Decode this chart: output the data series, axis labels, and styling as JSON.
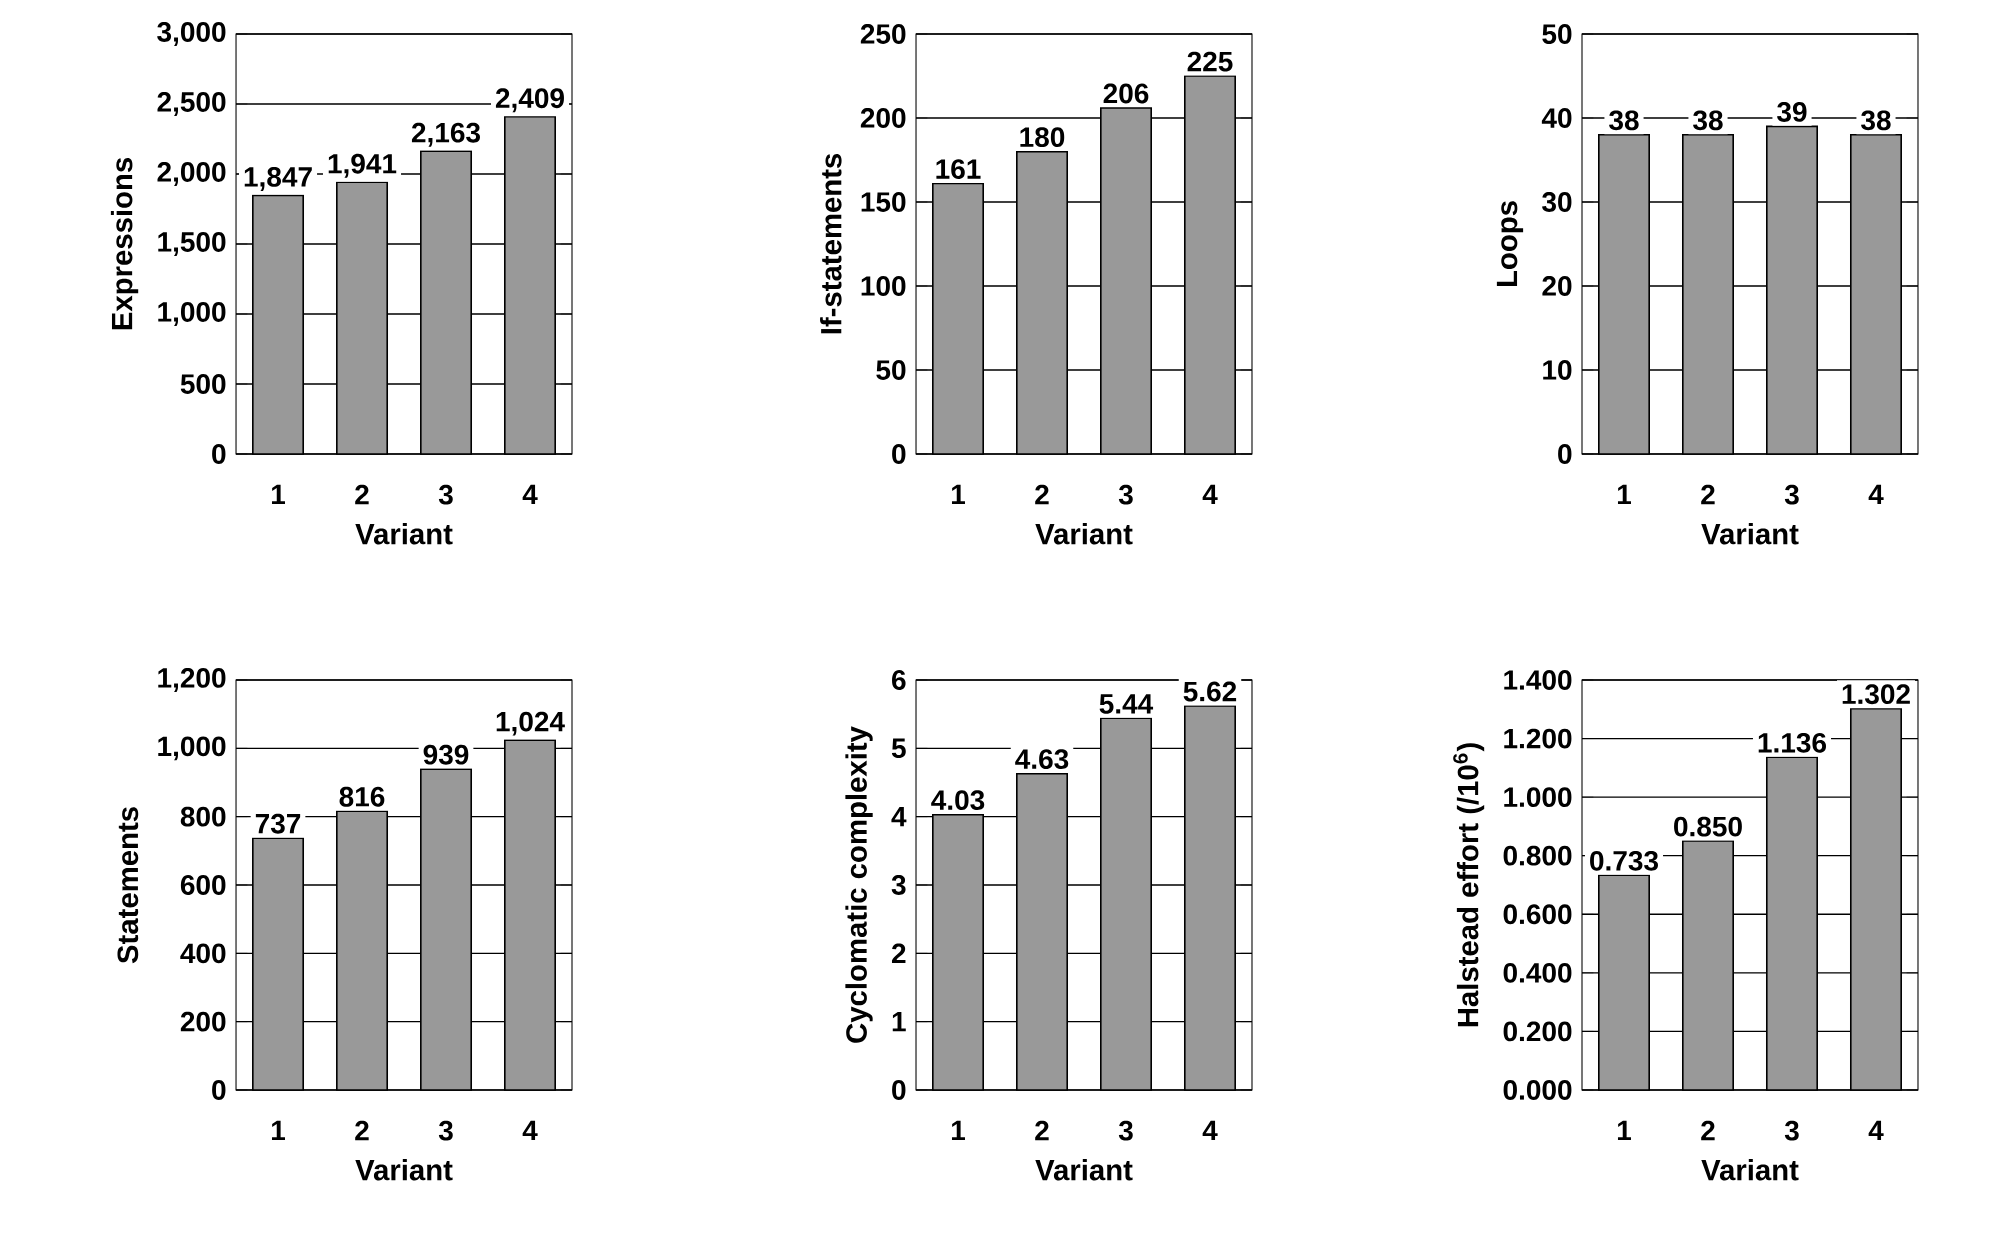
{
  "chart_data": [
    {
      "type": "bar",
      "categories": [
        "1",
        "2",
        "3",
        "4"
      ],
      "values": [
        1847,
        1941,
        2163,
        2409
      ],
      "value_labels": [
        "1,847",
        "1,941",
        "2,163",
        "2,409"
      ],
      "color": "#999999",
      "xlabel": "Variant",
      "ylabel": "Expressions",
      "ylim": [
        0,
        3000
      ],
      "yticks": [
        0,
        {
          "value": 500,
          "label": "500"
        },
        {
          "value": 1000,
          "label": "1,000"
        },
        {
          "value": 1500,
          "label": "1,500"
        },
        {
          "value": 2000,
          "label": "2,000"
        },
        {
          "value": 2500,
          "label": "2,500"
        },
        {
          "value": 3000,
          "label": "3,000"
        }
      ],
      "grid": "y"
    },
    {
      "type": "bar",
      "categories": [
        "1",
        "2",
        "3",
        "4"
      ],
      "values": [
        161,
        180,
        206,
        225
      ],
      "data_labels": true,
      "color": "#999999",
      "xlabel": "Variant",
      "ylabel": "If-statements",
      "ylim": [
        0,
        250
      ],
      "yticks": [
        0,
        50,
        100,
        150,
        200,
        250
      ],
      "grid": "y"
    },
    {
      "type": "bar",
      "categories": [
        "1",
        "2",
        "3",
        "4"
      ],
      "values": [
        38,
        38,
        39,
        38
      ],
      "data_labels": true,
      "color": "#999999",
      "xlabel": "Variant",
      "ylabel": "Loops",
      "ylim": [
        0,
        50
      ],
      "yticks": [
        0,
        10,
        20,
        30,
        40,
        50
      ],
      "grid": "y"
    },
    {
      "type": "bar",
      "categories": [
        "1",
        "2",
        "3",
        "4"
      ],
      "values": [
        737,
        816,
        939,
        1024
      ],
      "value_labels": [
        "737",
        "816",
        "939",
        "1,024"
      ],
      "color": "#999999",
      "xlabel": "Variant",
      "ylabel": "Statements",
      "ylim": [
        0,
        1200
      ],
      "yticks": [
        0,
        200,
        400,
        600,
        800,
        {
          "value": 1000,
          "label": "1,000"
        },
        {
          "value": 1200,
          "label": "1,200"
        }
      ],
      "grid": "y"
    },
    {
      "type": "bar",
      "categories": [
        "1",
        "2",
        "3",
        "4"
      ],
      "values": [
        4.03,
        4.63,
        5.44,
        5.62
      ],
      "data_labels": true,
      "color": "#999999",
      "xlabel": "Variant",
      "ylabel": "Cyclomatic complexity",
      "ylim": [
        0,
        6
      ],
      "yticks": [
        0,
        1,
        2,
        3,
        4,
        5,
        6
      ],
      "grid": "y"
    },
    {
      "type": "bar",
      "categories": [
        "1",
        "2",
        "3",
        "4"
      ],
      "values": [
        0.733,
        0.85,
        1.136,
        1.302
      ],
      "value_labels": [
        "0.733",
        "0.850",
        "1.136",
        "1.302"
      ],
      "color": "#999999",
      "xlabel": "Variant",
      "ylabel": "Halstead effort (/10$^{6}$)",
      "ylim": [
        0,
        1.4
      ],
      "yticks": [
        {
          "value": 0,
          "label": "0.000"
        },
        {
          "value": 0.2,
          "label": "0.200"
        },
        {
          "value": 0.4,
          "label": "0.400"
        },
        {
          "value": 0.6,
          "label": "0.600"
        },
        {
          "value": 0.8,
          "label": "0.800"
        },
        {
          "value": 1.0,
          "label": "1.000"
        },
        {
          "value": 1.2,
          "label": "1.200"
        },
        {
          "value": 1.4,
          "label": "1.400"
        }
      ],
      "grid": "y"
    }
  ]
}
